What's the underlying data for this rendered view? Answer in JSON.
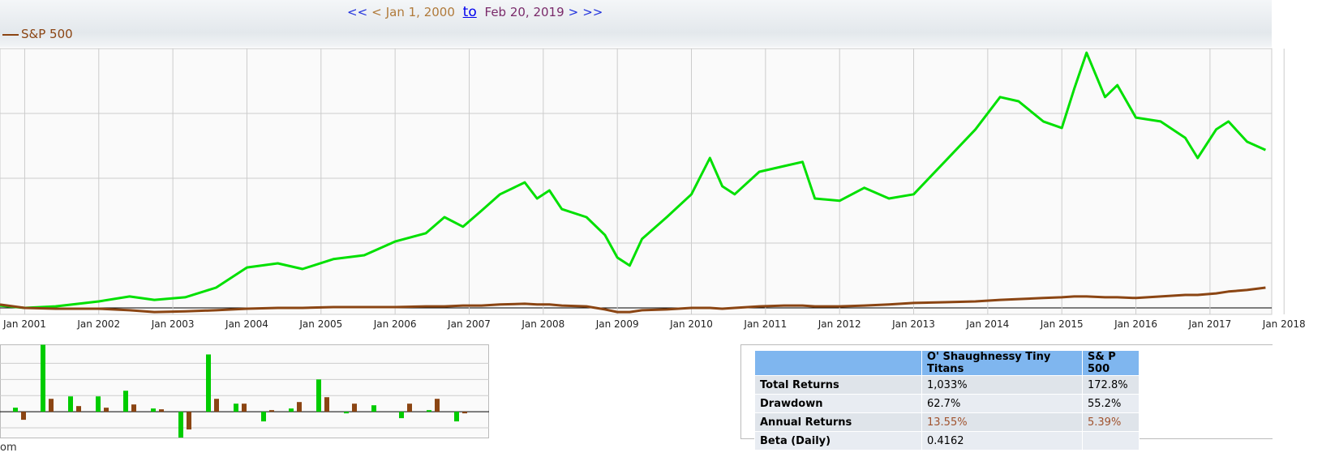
{
  "nav": {
    "first": "<<",
    "prev": "<",
    "start": "Jan 1, 2000",
    "to": "to",
    "end": "Feb 20, 2019",
    "next": ">",
    "last": ">>"
  },
  "chart_data": [
    {
      "type": "line",
      "x": [
        "2000-09",
        "2001-01",
        "2001-06",
        "2002-01",
        "2002-06",
        "2002-10",
        "2003-03",
        "2003-08",
        "2004-01",
        "2004-06",
        "2004-10",
        "2005-03",
        "2005-08",
        "2006-01",
        "2006-06",
        "2006-09",
        "2006-12",
        "2007-03",
        "2007-06",
        "2007-10",
        "2007-12",
        "2008-02",
        "2008-04",
        "2008-08",
        "2008-11",
        "2009-01",
        "2009-03",
        "2009-05",
        "2009-09",
        "2010-01",
        "2010-04",
        "2010-06",
        "2010-08",
        "2010-12",
        "2011-04",
        "2011-07",
        "2011-09",
        "2012-01",
        "2012-05",
        "2012-09",
        "2013-01",
        "2013-06",
        "2013-11",
        "2014-03",
        "2014-06",
        "2014-10",
        "2015-01",
        "2015-03",
        "2015-05",
        "2015-08",
        "2015-10",
        "2016-01",
        "2016-05",
        "2016-09",
        "2016-11",
        "2017-02",
        "2017-04",
        "2017-07",
        "2017-10"
      ],
      "series": [
        {
          "color": "#00e000",
          "values": [
            9,
            0,
            6,
            25,
            44,
            31,
            41,
            78,
            156,
            172,
            150,
            188,
            203,
            256,
            288,
            350,
            313,
            375,
            438,
            484,
            422,
            453,
            381,
            350,
            281,
            194,
            163,
            266,
            350,
            438,
            578,
            469,
            438,
            525,
            547,
            563,
            422,
            413,
            463,
            422,
            438,
            563,
            688,
            813,
            797,
            719,
            694,
            844,
            984,
            813,
            859,
            734,
            719,
            656,
            578,
            688,
            719,
            641,
            609
          ]
        },
        {
          "name": "S&P 500",
          "color": "#8b4513",
          "values": [
            13,
            0,
            -3,
            -3,
            -9,
            -16,
            -13,
            -9,
            -3,
            0,
            0,
            3,
            3,
            3,
            6,
            6,
            9,
            9,
            13,
            16,
            13,
            13,
            9,
            6,
            -6,
            -16,
            -16,
            -9,
            -6,
            0,
            0,
            -3,
            0,
            6,
            9,
            9,
            6,
            6,
            9,
            13,
            19,
            22,
            25,
            31,
            34,
            38,
            41,
            44,
            44,
            41,
            41,
            38,
            44,
            50,
            50,
            56,
            63,
            69,
            78
          ]
        }
      ],
      "xlim": [
        "2000-09",
        "2017-11"
      ],
      "xticks": [
        {
          "value": "2001-01",
          "label": "Jan 2001"
        },
        {
          "value": "2002-01",
          "label": "Jan 2002"
        },
        {
          "value": "2003-01",
          "label": "Jan 2003"
        },
        {
          "value": "2004-01",
          "label": "Jan 2004"
        },
        {
          "value": "2005-01",
          "label": "Jan 2005"
        },
        {
          "value": "2006-01",
          "label": "Jan 2006"
        },
        {
          "value": "2007-01",
          "label": "Jan 2007"
        },
        {
          "value": "2008-01",
          "label": "Jan 2008"
        },
        {
          "value": "2009-01",
          "label": "Jan 2009"
        },
        {
          "value": "2010-01",
          "label": "Jan 2010"
        },
        {
          "value": "2011-01",
          "label": "Jan 2011"
        },
        {
          "value": "2012-01",
          "label": "Jan 2012"
        },
        {
          "value": "2013-01",
          "label": "Jan 2013"
        },
        {
          "value": "2014-01",
          "label": "Jan 2014"
        },
        {
          "value": "2015-01",
          "label": "Jan 2015"
        },
        {
          "value": "2016-01",
          "label": "Jan 2016"
        },
        {
          "value": "2017-01",
          "label": "Jan 2017"
        },
        {
          "value": "2018-01",
          "label": "Jan 2018"
        }
      ],
      "ylim": [
        -25,
        1000
      ],
      "ygrid": [
        0,
        250,
        500,
        750,
        1000
      ],
      "grid": true
    },
    {
      "type": "bar",
      "categories": [
        null,
        null,
        null,
        null,
        null,
        null,
        null,
        null,
        null,
        null,
        null,
        null,
        null,
        null,
        null,
        null,
        null
      ],
      "series": [
        {
          "color": "#00cc00",
          "values": [
            5,
            83,
            19,
            19,
            26,
            4,
            -32,
            71,
            10,
            -12,
            4,
            40,
            -2,
            8,
            -8,
            2,
            -12
          ]
        },
        {
          "color": "#8b4513",
          "values": [
            -10,
            16,
            7,
            5,
            9,
            3,
            -22,
            16,
            10,
            2,
            12,
            18,
            10,
            0,
            10,
            16,
            -2
          ]
        }
      ],
      "ylim": [
        -32,
        83
      ],
      "ygrid": [
        -20,
        0,
        20,
        40,
        60
      ],
      "grid": true
    }
  ],
  "table": {
    "header": [
      "O' Shaughnessy Tiny Titans",
      "S& P 500"
    ],
    "rows": [
      [
        "Total Returns",
        "1,033%",
        "172.8%"
      ],
      [
        "Drawdown",
        "62.7%",
        "55.2%"
      ],
      [
        "Annual Returns",
        "13.55%",
        "5.39%"
      ],
      [
        "Beta (Daily)",
        "0.4162",
        ""
      ]
    ]
  },
  "footer": "om"
}
